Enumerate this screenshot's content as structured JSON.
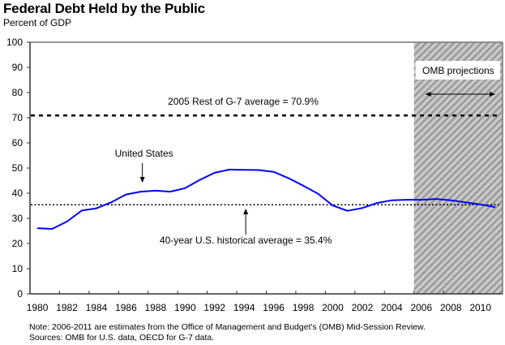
{
  "header": {
    "title": "Federal Debt Held by the Public",
    "subtitle": "Percent of GDP"
  },
  "footer": {
    "note": "Note: 2006-2011 are estimates from the Office of Management and Budget's (OMB) Mid-Session Review.",
    "sources": "Sources: OMB for U.S. data, OECD for G-7 data."
  },
  "colors": {
    "series": "#0000ff",
    "reference_lines": "#000000",
    "shade_base": "#c9c9c9",
    "shade_stripe": "#9a9a9a"
  },
  "chart_data": {
    "type": "line",
    "title": "Federal Debt Held by the Public",
    "subtitle": "Percent of GDP",
    "xlabel": "",
    "ylabel": "Percent of GDP",
    "ylim": [
      0,
      100
    ],
    "yticks": [
      0,
      10,
      20,
      30,
      40,
      50,
      60,
      70,
      80,
      90,
      100
    ],
    "x": [
      1980,
      1981,
      1982,
      1983,
      1984,
      1985,
      1986,
      1987,
      1988,
      1989,
      1990,
      1991,
      1992,
      1993,
      1994,
      1995,
      1996,
      1997,
      1998,
      1999,
      2000,
      2001,
      2002,
      2003,
      2004,
      2005,
      2006,
      2007,
      2008,
      2009,
      2010,
      2011
    ],
    "xtick_labels": [
      "1980",
      "1982",
      "1984",
      "1986",
      "1988",
      "1990",
      "1992",
      "1994",
      "1996",
      "1998",
      "2000",
      "2002",
      "2004",
      "2006",
      "2008",
      "2010"
    ],
    "grid": false,
    "series": [
      {
        "name": "United States",
        "values": [
          26.1,
          25.8,
          28.7,
          33.1,
          34.0,
          36.4,
          39.5,
          40.6,
          41.0,
          40.6,
          42.0,
          45.3,
          48.1,
          49.4,
          49.3,
          49.2,
          48.5,
          46.0,
          43.0,
          39.8,
          35.1,
          33.0,
          34.1,
          36.1,
          37.2,
          37.4,
          37.4,
          37.7,
          37.2,
          36.4,
          35.5,
          34.5
        ]
      }
    ],
    "reference_lines": [
      {
        "name": "2005 Rest of G-7 average",
        "value": 70.9,
        "label": "2005 Rest of G-7 average = 70.9%",
        "style": "dashed"
      },
      {
        "name": "40-year U.S. historical average",
        "value": 35.4,
        "label": "40-year U.S. historical average = 35.4%",
        "style": "dotted"
      }
    ],
    "shaded_region": {
      "label": "OMB projections",
      "from_year": 2006,
      "to_year": 2011
    },
    "annotations": [
      {
        "text": "United States",
        "points_to_year": 1987
      },
      {
        "text": "40-year U.S. historical average = 35.4%",
        "points_to_year": 1994
      }
    ]
  }
}
